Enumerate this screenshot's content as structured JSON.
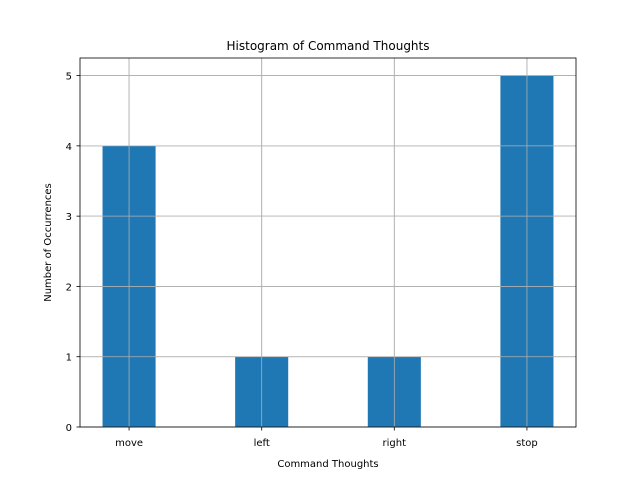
{
  "chart_data": {
    "type": "bar",
    "title": "Histogram of Command Thoughts",
    "xlabel": "Command Thoughts",
    "ylabel": "Number of Occurrences",
    "categories": [
      "move",
      "left",
      "right",
      "stop"
    ],
    "values": [
      4,
      1,
      1,
      5
    ],
    "ylim": [
      0,
      5.25
    ],
    "yticks": [
      0,
      1,
      2,
      3,
      4,
      5
    ],
    "grid": true,
    "bar_color": "#1f77b4",
    "grid_color": "#b0b0b0"
  }
}
